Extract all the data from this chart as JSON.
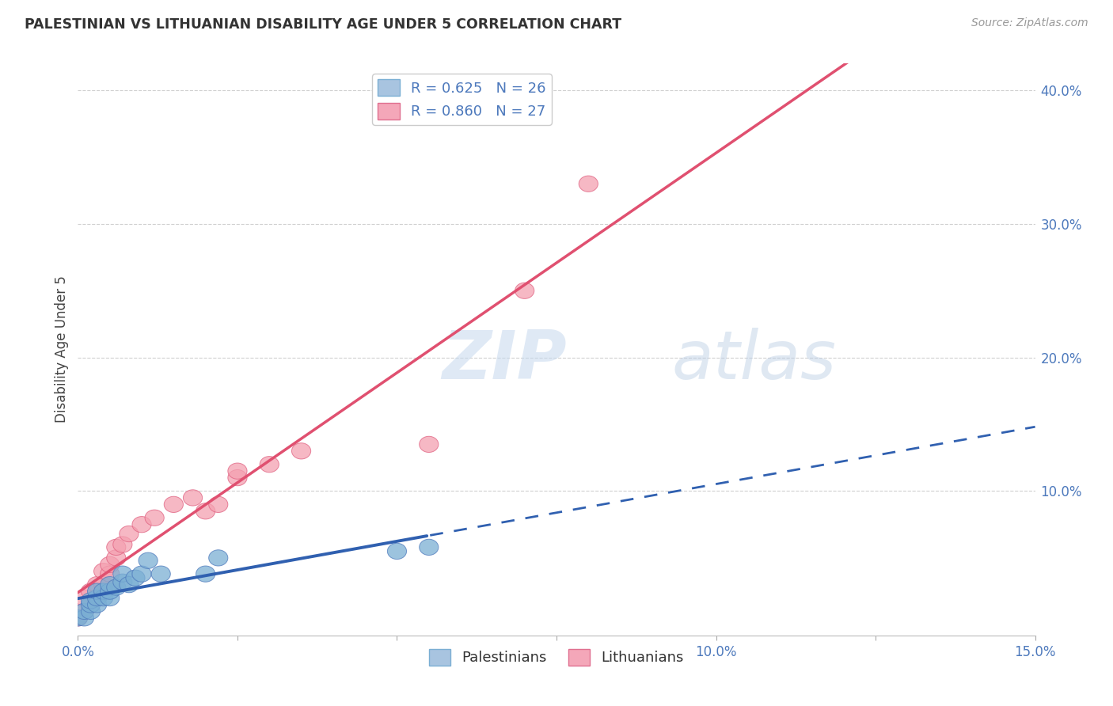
{
  "title": "PALESTINIAN VS LITHUANIAN DISABILITY AGE UNDER 5 CORRELATION CHART",
  "source": "Source: ZipAtlas.com",
  "ylabel": "Disability Age Under 5",
  "watermark": "ZIPatlas",
  "legend_entries": [
    {
      "label": "R = 0.625   N = 26",
      "color": "#a8c4e0"
    },
    {
      "label": "R = 0.860   N = 27",
      "color": "#f4a7b9"
    }
  ],
  "palestinians": {
    "x": [
      0.0,
      0.001,
      0.001,
      0.002,
      0.002,
      0.002,
      0.003,
      0.003,
      0.003,
      0.004,
      0.004,
      0.005,
      0.005,
      0.005,
      0.006,
      0.007,
      0.007,
      0.008,
      0.009,
      0.01,
      0.011,
      0.013,
      0.02,
      0.022,
      0.05,
      0.055
    ],
    "y": [
      0.005,
      0.005,
      0.01,
      0.01,
      0.015,
      0.018,
      0.015,
      0.02,
      0.025,
      0.02,
      0.025,
      0.02,
      0.025,
      0.03,
      0.028,
      0.032,
      0.038,
      0.03,
      0.035,
      0.038,
      0.048,
      0.038,
      0.038,
      0.05,
      0.055,
      0.058
    ],
    "color": "#7bafd4",
    "edge_color": "#4d79bc",
    "R": 0.625,
    "N": 26
  },
  "lithuanians": {
    "x": [
      0.0,
      0.001,
      0.001,
      0.002,
      0.003,
      0.003,
      0.004,
      0.004,
      0.005,
      0.005,
      0.006,
      0.006,
      0.007,
      0.008,
      0.01,
      0.012,
      0.015,
      0.018,
      0.02,
      0.022,
      0.025,
      0.025,
      0.03,
      0.035,
      0.055,
      0.07,
      0.08
    ],
    "y": [
      0.005,
      0.01,
      0.02,
      0.025,
      0.02,
      0.03,
      0.03,
      0.04,
      0.038,
      0.045,
      0.05,
      0.058,
      0.06,
      0.068,
      0.075,
      0.08,
      0.09,
      0.095,
      0.085,
      0.09,
      0.11,
      0.115,
      0.12,
      0.13,
      0.135,
      0.25,
      0.33
    ],
    "color": "#f4a0b0",
    "edge_color": "#e06080",
    "R": 0.86,
    "N": 27
  },
  "lit_trend_line": {
    "x0": 0.0,
    "y0": -0.005,
    "x1": 0.15,
    "y1": 0.36
  },
  "pal_trend_solid_end": 0.055,
  "xlim": [
    0,
    0.15
  ],
  "ylim": [
    -0.008,
    0.42
  ],
  "x_ticks": [
    0.0,
    0.025,
    0.05,
    0.075,
    0.1,
    0.125,
    0.15
  ],
  "x_tick_labels": [
    "0.0%",
    "",
    "",
    "",
    "10.0%",
    "",
    "15.0%"
  ],
  "y_ticks": [
    0.1,
    0.2,
    0.3,
    0.4
  ],
  "y_tick_labels": [
    "10.0%",
    "20.0%",
    "30.0%",
    "40.0%"
  ],
  "background_color": "#ffffff",
  "grid_color": "#d0d0d0",
  "axis_color": "#4d79bc",
  "trend_pal_color": "#3060b0",
  "trend_lit_color": "#e05070"
}
